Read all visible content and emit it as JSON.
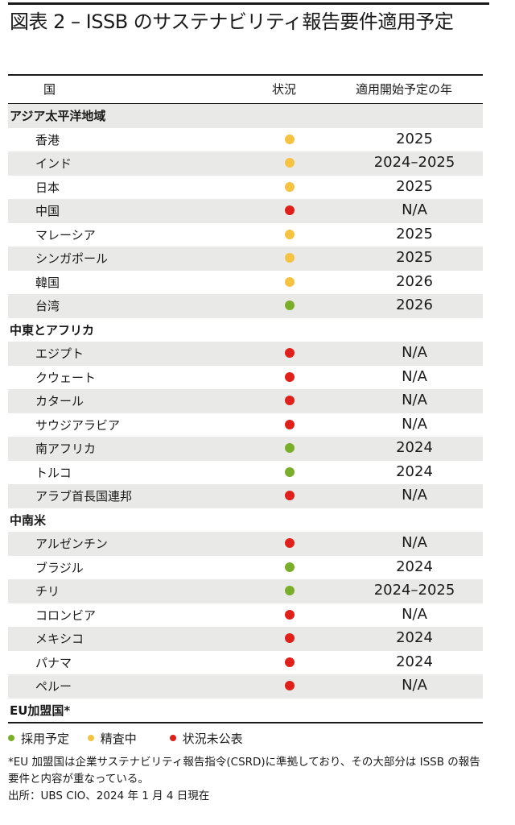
{
  "title": "図表 2 – ISSB のサステナビリティ報告要件適用予定",
  "colors": {
    "adopted": "#7aae2a",
    "review": "#f5c242",
    "undisclosed": "#e0201a",
    "shade": "#e9e9e7"
  },
  "header": {
    "country": "国",
    "status": "状況",
    "year": "適用開始予定の年"
  },
  "rows": [
    {
      "type": "group",
      "name": "アジア太平洋地域",
      "status": "",
      "year": ""
    },
    {
      "type": "item",
      "name": "香港",
      "status": "review",
      "year": "2025"
    },
    {
      "type": "item",
      "name": "インド",
      "status": "review",
      "year": "2024–2025"
    },
    {
      "type": "item",
      "name": "日本",
      "status": "review",
      "year": "2025"
    },
    {
      "type": "item",
      "name": "中国",
      "status": "undisclosed",
      "year": "N/A"
    },
    {
      "type": "item",
      "name": "マレーシア",
      "status": "review",
      "year": "2025"
    },
    {
      "type": "item",
      "name": "シンガポール",
      "status": "review",
      "year": "2025"
    },
    {
      "type": "item",
      "name": "韓国",
      "status": "review",
      "year": "2026"
    },
    {
      "type": "item",
      "name": "台湾",
      "status": "adopted",
      "year": "2026"
    },
    {
      "type": "group",
      "name": "中東とアフリカ",
      "status": "",
      "year": ""
    },
    {
      "type": "item",
      "name": "エジプト",
      "status": "undisclosed",
      "year": "N/A"
    },
    {
      "type": "item",
      "name": "クウェート",
      "status": "undisclosed",
      "year": "N/A"
    },
    {
      "type": "item",
      "name": "カタール",
      "status": "undisclosed",
      "year": "N/A"
    },
    {
      "type": "item",
      "name": "サウジアラビア",
      "status": "undisclosed",
      "year": "N/A"
    },
    {
      "type": "item",
      "name": "南アフリカ",
      "status": "adopted",
      "year": "2024"
    },
    {
      "type": "item",
      "name": "トルコ",
      "status": "adopted",
      "year": "2024"
    },
    {
      "type": "item",
      "name": "アラブ首長国連邦",
      "status": "undisclosed",
      "year": "N/A"
    },
    {
      "type": "group",
      "name": "中南米",
      "status": "",
      "year": ""
    },
    {
      "type": "item",
      "name": "アルゼンチン",
      "status": "undisclosed",
      "year": "N/A"
    },
    {
      "type": "item",
      "name": "ブラジル",
      "status": "adopted",
      "year": "2024"
    },
    {
      "type": "item",
      "name": "チリ",
      "status": "adopted",
      "year": "2024–2025"
    },
    {
      "type": "item",
      "name": "コロンビア",
      "status": "undisclosed",
      "year": "N/A"
    },
    {
      "type": "item",
      "name": "メキシコ",
      "status": "undisclosed",
      "year": "2024"
    },
    {
      "type": "item",
      "name": "パナマ",
      "status": "undisclosed",
      "year": "2024"
    },
    {
      "type": "item",
      "name": "ペルー",
      "status": "undisclosed",
      "year": "N/A"
    },
    {
      "type": "group",
      "name": "EU加盟国*",
      "status": "",
      "year": ""
    }
  ],
  "legend": [
    {
      "key": "adopted",
      "label": "採用予定"
    },
    {
      "key": "review",
      "label": "精査中"
    },
    {
      "key": "undisclosed",
      "label": "状況未公表"
    }
  ],
  "footnote": "*EU 加盟国は企業サステナビリティ報告指令(CSRD)に準拠しており、その大部分は ISSB の報告要件と内容が重なっている。",
  "source": "出所：UBS CIO、2024 年 1 月 4 日現在"
}
